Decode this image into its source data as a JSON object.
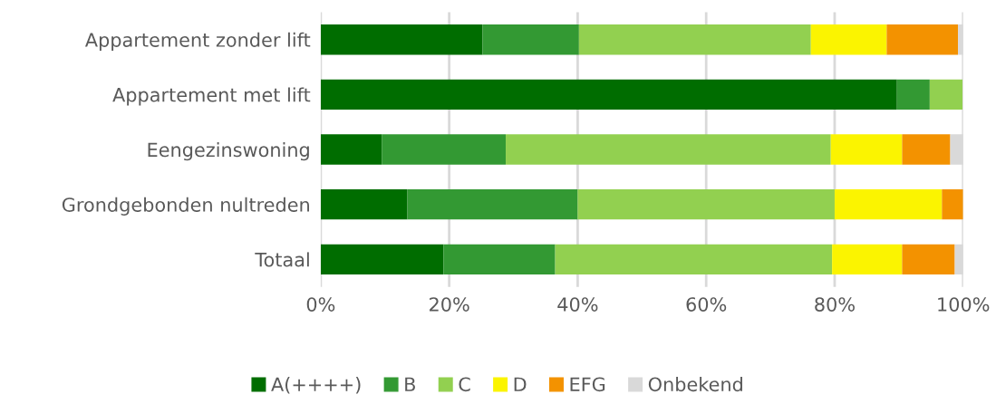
{
  "chart_data": {
    "type": "bar",
    "orientation": "horizontal",
    "stacked": true,
    "categories": [
      "Appartement zonder lift",
      "Appartement met lift",
      "Eengezinswoning",
      "Grondgebonden nultreden",
      "Totaal"
    ],
    "series": [
      {
        "name": "A(++++)",
        "color": "#006d00",
        "values": [
          25.2,
          89.7,
          9.5,
          13.5,
          19.1
        ]
      },
      {
        "name": "B",
        "color": "#339933",
        "values": [
          15,
          5.1,
          19.3,
          26.5,
          17.4
        ]
      },
      {
        "name": "C",
        "color": "#92d050",
        "values": [
          36.1,
          5.1,
          50.6,
          40,
          43.1
        ]
      },
      {
        "name": "D",
        "color": "#fbf400",
        "values": [
          11.8,
          null,
          11.1,
          16.7,
          10.9
        ]
      },
      {
        "name": "EFG",
        "color": "#f39200",
        "values": [
          11.1,
          null,
          7.5,
          3.3,
          8.2
        ]
      },
      {
        "name": "Onbekend",
        "color": "#d9d9d9",
        "values": [
          0.9,
          null,
          2.1,
          null,
          1.4
        ]
      }
    ],
    "xlim": [
      0,
      100
    ],
    "xticks": [
      {
        "value": 0,
        "label": "0%"
      },
      {
        "value": 20,
        "label": "20%"
      },
      {
        "value": 40,
        "label": "40%"
      },
      {
        "value": 60,
        "label": "60%"
      },
      {
        "value": 80,
        "label": "80%"
      },
      {
        "value": 100,
        "label": "100%"
      }
    ],
    "grid": "x",
    "legend": "bottom"
  }
}
